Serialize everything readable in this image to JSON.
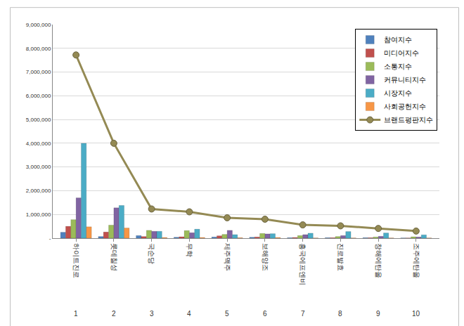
{
  "chart_data": {
    "type": "bar",
    "categories": [
      "하이트진로",
      "롯데칠성",
      "국순당",
      "무학",
      "제주맥주",
      "보해양조",
      "흥국에프엔비",
      "진로발효",
      "창해에탄올",
      "조주에탄올"
    ],
    "ranks": [
      1,
      2,
      3,
      4,
      5,
      6,
      7,
      8,
      9,
      10
    ],
    "series": [
      {
        "name": "참여지수",
        "type": "bar",
        "color": "#4f81bd",
        "values": [
          250000,
          70000,
          110000,
          40000,
          50000,
          40000,
          20000,
          20000,
          20000,
          10000
        ]
      },
      {
        "name": "미디어지수",
        "type": "bar",
        "color": "#c0504d",
        "values": [
          500000,
          260000,
          70000,
          60000,
          100000,
          50000,
          30000,
          20000,
          20000,
          10000
        ]
      },
      {
        "name": "소통지수",
        "type": "bar",
        "color": "#9bbb59",
        "values": [
          780000,
          550000,
          330000,
          320000,
          160000,
          200000,
          110000,
          70000,
          50000,
          60000
        ]
      },
      {
        "name": "커뮤니티지수",
        "type": "bar",
        "color": "#8064a2",
        "values": [
          1700000,
          1280000,
          290000,
          230000,
          330000,
          180000,
          150000,
          110000,
          80000,
          50000
        ]
      },
      {
        "name": "시장지수",
        "type": "bar",
        "color": "#4bacc6",
        "values": [
          4000000,
          1380000,
          290000,
          380000,
          150000,
          190000,
          210000,
          280000,
          220000,
          140000
        ]
      },
      {
        "name": "사회공헌지수",
        "type": "bar",
        "color": "#f79646",
        "values": [
          480000,
          430000,
          30000,
          30000,
          20000,
          30000,
          10000,
          10000,
          10000,
          10000
        ]
      },
      {
        "name": "브랜드평판지수",
        "type": "line",
        "color": "#948a54",
        "marker": "circle",
        "values": [
          7720000,
          4000000,
          1230000,
          1110000,
          860000,
          800000,
          560000,
          520000,
          410000,
          300000
        ]
      }
    ],
    "ylim": [
      0,
      9000000
    ],
    "yticks": [
      {
        "value": 0,
        "label": "-"
      },
      {
        "value": 1000000,
        "label": "1,000,000"
      },
      {
        "value": 2000000,
        "label": "2,000,000"
      },
      {
        "value": 3000000,
        "label": "3,000,000"
      },
      {
        "value": 4000000,
        "label": "4,000,000"
      },
      {
        "value": 5000000,
        "label": "5,000,000"
      },
      {
        "value": 6000000,
        "label": "6,000,000"
      },
      {
        "value": 7000000,
        "label": "7,000,000"
      },
      {
        "value": 8000000,
        "label": "8,000,000"
      },
      {
        "value": 9000000,
        "label": "9,000,000"
      }
    ],
    "grid": true,
    "legend": "top-right"
  }
}
